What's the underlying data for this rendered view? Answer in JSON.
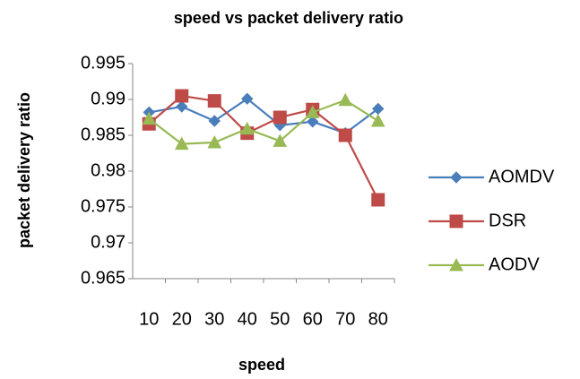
{
  "chart_data": {
    "type": "line",
    "title": "speed vs packet delivery ratio",
    "x_label": "speed",
    "y_label": "packet delivery ratio",
    "categories": [
      "10",
      "20",
      "30",
      "40",
      "50",
      "60",
      "70",
      "80"
    ],
    "series": [
      {
        "name": "AOMDV",
        "color": "#4a7ebb",
        "marker": "diamond",
        "values": [
          0.9882,
          0.989,
          0.987,
          0.9901,
          0.9864,
          0.9869,
          0.9853,
          0.9887
        ]
      },
      {
        "name": "DSR",
        "color": "#be4b48",
        "marker": "square",
        "values": [
          0.9866,
          0.9905,
          0.9898,
          0.9853,
          0.9875,
          0.9886,
          0.985,
          0.976
        ]
      },
      {
        "name": "AODV",
        "color": "#98b954",
        "marker": "triangle",
        "values": [
          0.9873,
          0.9838,
          0.984,
          0.9859,
          0.9842,
          0.9882,
          0.9899,
          0.987
        ]
      }
    ],
    "ylim": [
      0.965,
      0.995
    ],
    "yticks": [
      0.965,
      0.97,
      0.975,
      0.98,
      0.985,
      0.99,
      0.995
    ],
    "grid": false,
    "legend": "right"
  }
}
